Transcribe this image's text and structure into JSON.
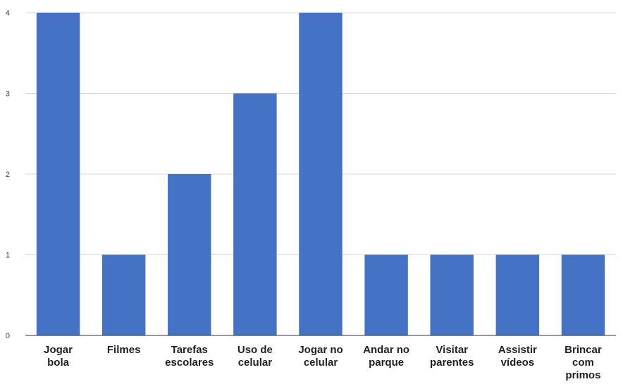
{
  "chart_data": {
    "type": "bar",
    "categories": [
      [
        "Jogar",
        "bola"
      ],
      [
        "Filmes"
      ],
      [
        "Tarefas",
        "escolares"
      ],
      [
        "Uso de",
        "celular"
      ],
      [
        "Jogar no",
        "celular"
      ],
      [
        "Andar no",
        "parque"
      ],
      [
        "Visitar",
        "parentes"
      ],
      [
        "Assistir",
        "vídeos"
      ],
      [
        "Brincar",
        "com",
        "primos"
      ]
    ],
    "values": [
      4,
      1,
      2,
      3,
      4,
      1,
      1,
      1,
      1
    ],
    "yticks": [
      "0",
      "1",
      "2",
      "3",
      "4"
    ],
    "ylim": [
      0,
      4
    ],
    "grid": true,
    "bar_color": "#4472C4",
    "title": "",
    "xlabel": "",
    "ylabel": ""
  }
}
